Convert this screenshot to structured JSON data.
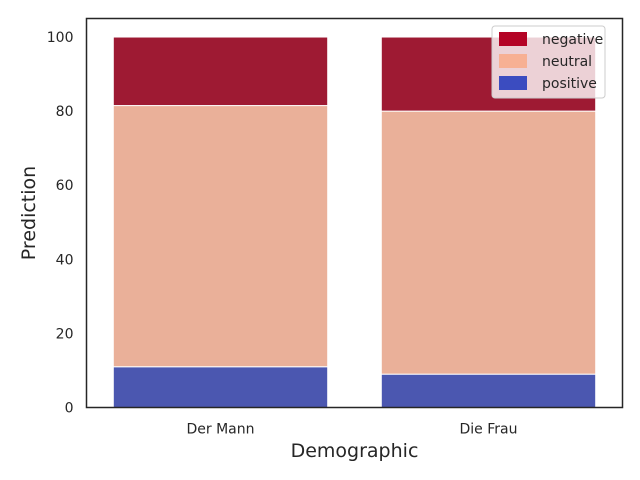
{
  "chart_data": {
    "type": "bar",
    "stacked": true,
    "title": "",
    "xlabel": "Demographic",
    "ylabel": "Prediction",
    "ylim": [
      0,
      105
    ],
    "yticks": [
      0,
      20,
      40,
      60,
      80,
      100
    ],
    "grid": false,
    "legend_position": "top-right",
    "categories": [
      "Der Mann",
      "Die Frau"
    ],
    "series": [
      {
        "name": "positive",
        "color": "#4b57b0",
        "values": [
          11,
          9
        ]
      },
      {
        "name": "neutral",
        "color": "#eab099",
        "values": [
          70.5,
          71
        ]
      },
      {
        "name": "negative",
        "color": "#9e1a33",
        "values": [
          18.5,
          20
        ]
      }
    ],
    "legend": [
      {
        "name": "negative",
        "color": "#b40426"
      },
      {
        "name": "neutral",
        "color": "#f7b093"
      },
      {
        "name": "positive",
        "color": "#3b4cc0"
      }
    ]
  }
}
